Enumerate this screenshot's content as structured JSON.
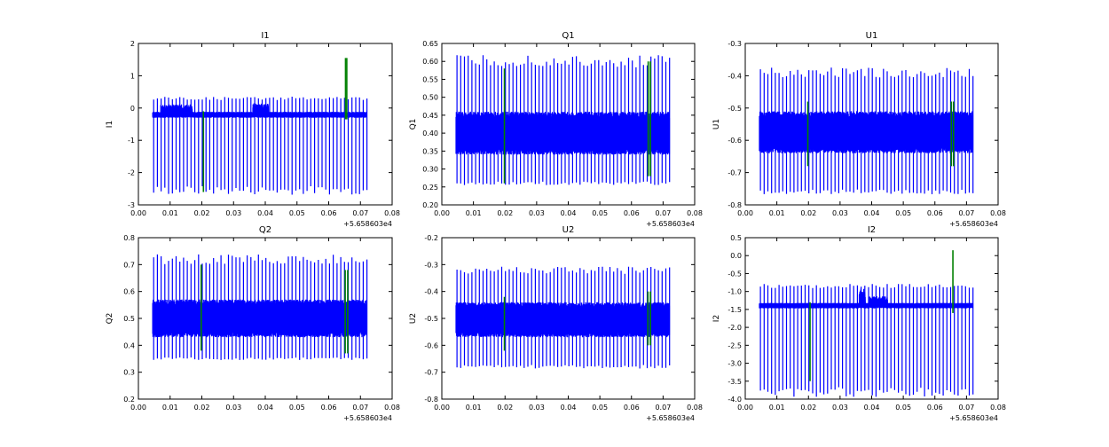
{
  "figure": {
    "x_offset_label": "+5.658603e4",
    "colors": {
      "signal": "#0000ff",
      "flagged": "#008000",
      "frame": "#000000"
    }
  },
  "chart_data": [
    {
      "type": "line",
      "title": "I1",
      "xlabel": "",
      "ylabel": "I1",
      "xlim": [
        0.0,
        0.08
      ],
      "ylim": [
        -3,
        2
      ],
      "xticks": [
        "0.00",
        "0.01",
        "0.02",
        "0.03",
        "0.04",
        "0.05",
        "0.06",
        "0.07",
        "0.08"
      ],
      "yticks": [
        "-3",
        "-2",
        "-1",
        "0",
        "1",
        "2"
      ],
      "baseline": [
        -0.3,
        -0.12
      ],
      "spike_low": -2.55,
      "spike_high": 0.3,
      "bumps": [
        [
          0.007,
          0.017,
          0.25
        ],
        [
          0.036,
          0.041,
          0.3
        ]
      ],
      "flag_x": [
        0.0205,
        0.0653,
        0.0657
      ],
      "flag_range": [
        [
          -2.6,
          -0.1
        ],
        [
          -0.35,
          1.55
        ]
      ]
    },
    {
      "type": "line",
      "title": "Q1",
      "xlabel": "",
      "ylabel": "Q1",
      "xlim": [
        0.0,
        0.08
      ],
      "ylim": [
        0.2,
        0.65
      ],
      "xticks": [
        "0.00",
        "0.01",
        "0.02",
        "0.03",
        "0.04",
        "0.05",
        "0.06",
        "0.07",
        "0.08"
      ],
      "yticks": [
        "0.20",
        "0.25",
        "0.30",
        "0.35",
        "0.40",
        "0.45",
        "0.50",
        "0.55",
        "0.60",
        "0.65"
      ],
      "baseline": [
        0.34,
        0.46
      ],
      "spike_low": 0.26,
      "spike_high": 0.6,
      "bumps": [],
      "flag_x": [
        0.0198,
        0.0653,
        0.066
      ],
      "flag_range": [
        [
          0.26,
          0.58
        ],
        [
          0.28,
          0.6
        ]
      ]
    },
    {
      "type": "line",
      "title": "U1",
      "xlabel": "",
      "ylabel": "U1",
      "xlim": [
        0.0,
        0.08
      ],
      "ylim": [
        -0.8,
        -0.3
      ],
      "xticks": [
        "0.00",
        "0.01",
        "0.02",
        "0.03",
        "0.04",
        "0.05",
        "0.06",
        "0.07",
        "0.08"
      ],
      "yticks": [
        "-0.8",
        "-0.7",
        "-0.6",
        "-0.5",
        "-0.4",
        "-0.3"
      ],
      "baseline": [
        -0.64,
        -0.51
      ],
      "spike_low": -0.76,
      "spike_high": -0.39,
      "bumps": [],
      "flag_x": [
        0.0198,
        0.0652,
        0.0659
      ],
      "flag_range": [
        [
          -0.68,
          -0.48
        ],
        [
          -0.68,
          -0.48
        ]
      ]
    },
    {
      "type": "line",
      "title": "Q2",
      "xlabel": "",
      "ylabel": "Q2",
      "xlim": [
        0.0,
        0.08
      ],
      "ylim": [
        0.2,
        0.8
      ],
      "xticks": [
        "0.00",
        "0.01",
        "0.02",
        "0.03",
        "0.04",
        "0.05",
        "0.06",
        "0.07",
        "0.08"
      ],
      "yticks": [
        "0.2",
        "0.3",
        "0.4",
        "0.5",
        "0.6",
        "0.7",
        "0.8"
      ],
      "baseline": [
        0.43,
        0.57
      ],
      "spike_low": 0.35,
      "spike_high": 0.72,
      "bumps": [],
      "flag_x": [
        0.0198,
        0.0652,
        0.066
      ],
      "flag_range": [
        [
          0.38,
          0.7
        ],
        [
          0.37,
          0.68
        ]
      ]
    },
    {
      "type": "line",
      "title": "U2",
      "xlabel": "",
      "ylabel": "U2",
      "xlim": [
        0.0,
        0.08
      ],
      "ylim": [
        -0.8,
        -0.2
      ],
      "xticks": [
        "0.00",
        "0.01",
        "0.02",
        "0.03",
        "0.04",
        "0.05",
        "0.06",
        "0.07",
        "0.08"
      ],
      "yticks": [
        "-0.8",
        "-0.7",
        "-0.6",
        "-0.5",
        "-0.4",
        "-0.3",
        "-0.2"
      ],
      "baseline": [
        -0.57,
        -0.44
      ],
      "spike_low": -0.68,
      "spike_high": -0.32,
      "bumps": [],
      "flag_x": [
        0.0198,
        0.0652,
        0.066
      ],
      "flag_range": [
        [
          -0.62,
          -0.42
        ],
        [
          -0.6,
          -0.4
        ]
      ]
    },
    {
      "type": "line",
      "title": "I2",
      "xlabel": "",
      "ylabel": "I2",
      "xlim": [
        0.0,
        0.08
      ],
      "ylim": [
        -4.0,
        0.5
      ],
      "xticks": [
        "0.00",
        "0.01",
        "0.02",
        "0.03",
        "0.04",
        "0.05",
        "0.06",
        "0.07",
        "0.08"
      ],
      "yticks": [
        "-4.0",
        "-3.5",
        "-3.0",
        "-2.5",
        "-2.0",
        "-1.5",
        "-1.0",
        "-0.5",
        "0.0",
        "0.5"
      ],
      "baseline": [
        -1.47,
        -1.32
      ],
      "spike_low": -3.8,
      "spike_high": -0.85,
      "bumps": [
        [
          0.036,
          0.038,
          0.45
        ],
        [
          0.039,
          0.045,
          0.2
        ]
      ],
      "flag_x": [
        0.0205,
        0.0657
      ],
      "flag_range": [
        [
          -3.5,
          -1.3
        ],
        [
          -1.6,
          0.15
        ]
      ]
    }
  ]
}
